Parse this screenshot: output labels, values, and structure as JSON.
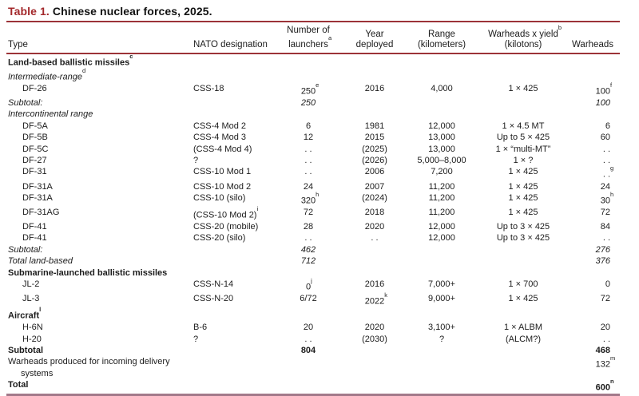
{
  "title": {
    "label": "Table 1.",
    "text": " Chinese nuclear forces, 2025."
  },
  "colors": {
    "accent": "#a3282b",
    "rule_top": "#9c3338",
    "rule_bottom": "#a2798a",
    "text": "#1c1c1c",
    "background": "#ffffff"
  },
  "columns": [
    {
      "id": "type",
      "lines": [
        "Type"
      ]
    },
    {
      "id": "nato",
      "lines": [
        "NATO designation"
      ]
    },
    {
      "id": "launchers",
      "lines": [
        "Number of",
        "launchers^a"
      ]
    },
    {
      "id": "year",
      "lines": [
        "Year",
        "deployed"
      ]
    },
    {
      "id": "range",
      "lines": [
        "Range",
        "(kilometers)"
      ]
    },
    {
      "id": "yield",
      "lines": [
        "Warheads x yield^b",
        "(kilotons)"
      ]
    },
    {
      "id": "warheads",
      "lines": [
        "Warheads"
      ]
    }
  ],
  "rows": [
    {
      "style": "bold",
      "indent": false,
      "type": "Land-based ballistic missiles^c"
    },
    {
      "style": "italic",
      "indent": false,
      "type": "Intermediate-range^d"
    },
    {
      "style": "normal",
      "indent": true,
      "type": "DF-26",
      "nato": "CSS-18",
      "launchers": "250^e",
      "year": "2016",
      "range": "4,000",
      "yield": "1 × 425",
      "warheads": "100^f"
    },
    {
      "style": "italic",
      "indent": false,
      "type": "Subtotal:",
      "launchers": "250",
      "warheads": "100"
    },
    {
      "style": "italic",
      "indent": false,
      "type": "Intercontinental range"
    },
    {
      "style": "normal",
      "indent": true,
      "type": "DF-5A",
      "nato": "CSS-4 Mod 2",
      "launchers": "6",
      "year": "1981",
      "range": "12,000",
      "yield": "1 × 4.5 MT",
      "warheads": "6"
    },
    {
      "style": "normal",
      "indent": true,
      "type": "DF-5B",
      "nato": "CSS-4 Mod 3",
      "launchers": "12",
      "year": "2015",
      "range": "13,000",
      "yield": "Up to 5 × 425",
      "warheads": "60"
    },
    {
      "style": "normal",
      "indent": true,
      "type": "DF-5C",
      "nato": "(CSS-4 Mod 4)",
      "launchers": ". .",
      "year": "(2025)",
      "range": "13,000",
      "yield": "1 × “multi-MT”",
      "warheads": ". ."
    },
    {
      "style": "normal",
      "indent": true,
      "type": "DF-27",
      "nato": "?",
      "launchers": ". .",
      "year": "(2026)",
      "range": "5,000–8,000",
      "yield": "1 × ?",
      "warheads": ". ."
    },
    {
      "style": "normal",
      "indent": true,
      "type": "DF-31",
      "nato": "CSS-10 Mod 1",
      "launchers": ". .",
      "year": "2006",
      "range": "7,200",
      "yield": "1 × 425",
      "warheads": ". .^g"
    },
    {
      "style": "normal",
      "indent": true,
      "type": "DF-31A",
      "nato": "CSS-10 Mod 2",
      "launchers": "24",
      "year": "2007",
      "range": "11,200",
      "yield": "1 × 425",
      "warheads": "24"
    },
    {
      "style": "normal",
      "indent": true,
      "type": "DF-31A",
      "nato": "CSS-10 (silo)",
      "launchers": "320^h",
      "year": "(2024)",
      "range": "11,200",
      "yield": "1 × 425",
      "warheads": "30^h"
    },
    {
      "style": "normal",
      "indent": true,
      "type": "DF-31AG",
      "nato": "(CSS-10 Mod 2)^i",
      "launchers": "72",
      "year": "2018",
      "range": "11,200",
      "yield": "1 × 425",
      "warheads": "72"
    },
    {
      "style": "normal",
      "indent": true,
      "type": "DF-41",
      "nato": "CSS-20 (mobile)",
      "launchers": "28",
      "year": "2020",
      "range": "12,000",
      "yield": "Up to 3 × 425",
      "warheads": "84"
    },
    {
      "style": "normal",
      "indent": true,
      "type": "DF-41",
      "nato": "CSS-20 (silo)",
      "launchers": ". .",
      "year": ". .",
      "range": "12,000",
      "yield": "Up to 3 × 425",
      "warheads": ". ."
    },
    {
      "style": "italic",
      "indent": false,
      "type": "Subtotal:",
      "launchers": "462",
      "warheads": "276"
    },
    {
      "style": "italic",
      "indent": false,
      "type": "Total land-based",
      "launchers": "712",
      "warheads": "376"
    },
    {
      "style": "bold",
      "indent": false,
      "type": "Submarine-launched ballistic missiles"
    },
    {
      "style": "normal",
      "indent": true,
      "type": "JL-2",
      "nato": "CSS-N-14",
      "launchers": "0^j",
      "year": "2016",
      "range": "7,000+",
      "yield": "1 × 700",
      "warheads": "0"
    },
    {
      "style": "normal",
      "indent": true,
      "type": "JL-3",
      "nato": "CSS-N-20",
      "launchers": "6/72",
      "year": "2022^k",
      "range": "9,000+",
      "yield": "1 × 425",
      "warheads": "72"
    },
    {
      "style": "bold",
      "indent": false,
      "type": "Aircraft^l"
    },
    {
      "style": "normal",
      "indent": true,
      "type": "H-6N",
      "nato": "B-6",
      "launchers": "20",
      "year": "2020",
      "range": "3,100+",
      "yield": "1 × ALBM",
      "warheads": "20"
    },
    {
      "style": "normal",
      "indent": true,
      "type": "H-20",
      "nato": "?",
      "launchers": ". .",
      "year": "(2030)",
      "range": "?",
      "yield": "(ALCM?)",
      "warheads": ". ."
    },
    {
      "style": "bold",
      "indent": false,
      "type": "Subtotal",
      "launchers": "804",
      "warheads": "468"
    },
    {
      "style": "normal",
      "indent": false,
      "type": "Warheads produced for incoming delivery",
      "type2": "systems",
      "warheads": "132^m"
    },
    {
      "style": "bold",
      "indent": false,
      "type": "Total",
      "warheads": "600^n"
    }
  ]
}
